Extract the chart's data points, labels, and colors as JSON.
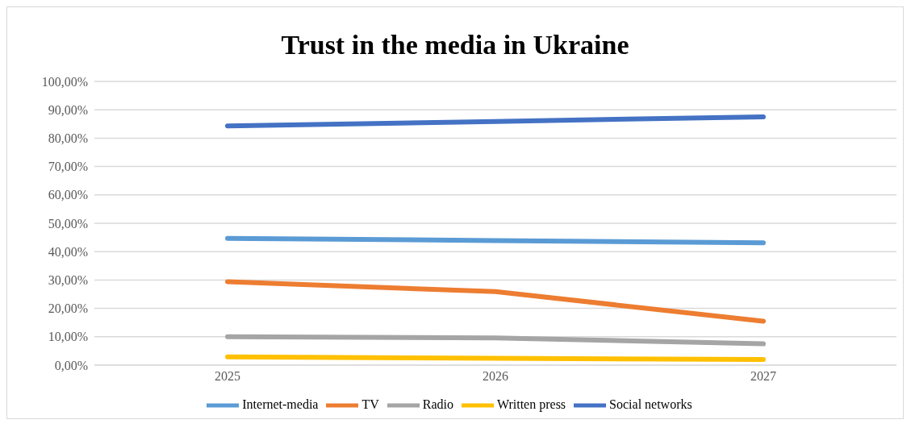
{
  "chart_data": {
    "type": "line",
    "title": "Trust in the media in Ukraine",
    "categories": [
      "2025",
      "2026",
      "2027"
    ],
    "series": [
      {
        "name": "Internet-media",
        "color": "#5b9bd5",
        "values": [
          44.7,
          43.9,
          43.1
        ]
      },
      {
        "name": "TV",
        "color": "#ed7d31",
        "values": [
          29.4,
          25.9,
          15.5
        ]
      },
      {
        "name": "Radio",
        "color": "#a5a5a5",
        "values": [
          10.0,
          9.6,
          7.5
        ]
      },
      {
        "name": "Written press",
        "color": "#ffc000",
        "values": [
          2.9,
          2.4,
          2.0
        ]
      },
      {
        "name": "Social networks",
        "color": "#4472c4",
        "values": [
          84.3,
          85.9,
          87.5
        ]
      }
    ],
    "ylim": [
      0,
      100
    ],
    "yticks": [
      {
        "value": 0,
        "label": "0,00%"
      },
      {
        "value": 10,
        "label": "10,00%"
      },
      {
        "value": 20,
        "label": "20,00%"
      },
      {
        "value": 30,
        "label": "30,00%"
      },
      {
        "value": 40,
        "label": "40,00%"
      },
      {
        "value": 50,
        "label": "50,00%"
      },
      {
        "value": 60,
        "label": "60,00%"
      },
      {
        "value": 70,
        "label": "70,00%"
      },
      {
        "value": 80,
        "label": "80,00%"
      },
      {
        "value": 90,
        "label": "90,00%"
      },
      {
        "value": 100,
        "label": "100,00%"
      }
    ],
    "grid": "y",
    "legend": "bottom",
    "marker": "none",
    "line_style": "solid"
  }
}
